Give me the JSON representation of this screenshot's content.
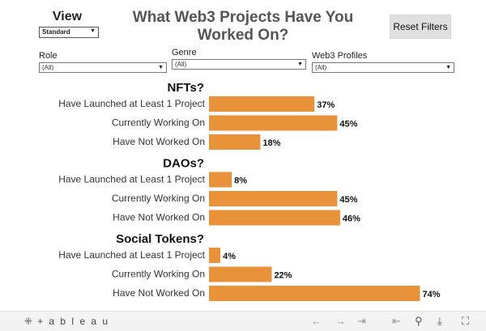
{
  "view": {
    "label": "View",
    "selected": "Standard"
  },
  "title": "What Web3 Projects Have You Worked On?",
  "reset_button": "Reset Filters",
  "filters": [
    {
      "label": "Role",
      "value": "(All)"
    },
    {
      "label": "Genre",
      "value": "(All)"
    },
    {
      "label": "Web3 Profiles",
      "value": "(All)"
    }
  ],
  "chart_data": {
    "type": "bar",
    "orientation": "horizontal",
    "bar_color": "#E8923A",
    "xlim": [
      0,
      100
    ],
    "groups": [
      {
        "title": "NFTs?",
        "categories": [
          "Have Launched at Least 1 Project",
          "Currently Working On",
          "Have Not Worked On"
        ],
        "values": [
          37,
          45,
          18
        ],
        "labels": [
          "37%",
          "45%",
          "18%"
        ]
      },
      {
        "title": "DAOs?",
        "categories": [
          "Have Launched at Least 1 Project",
          "Currently Working On",
          "Have Not Worked On"
        ],
        "values": [
          8,
          45,
          46
        ],
        "labels": [
          "8%",
          "45%",
          "46%"
        ]
      },
      {
        "title": "Social Tokens?",
        "categories": [
          "Have Launched at Least 1 Project",
          "Currently Working On",
          "Have Not Worked On"
        ],
        "values": [
          4,
          22,
          74
        ],
        "labels": [
          "4%",
          "22%",
          "74%"
        ]
      }
    ]
  },
  "toolbar": {
    "logo_text": "+ a b l e a u",
    "icons": [
      "tableau-logo-icon",
      "undo-icon",
      "redo-icon",
      "revert-icon",
      "back-to-start-icon",
      "share-icon",
      "download-icon",
      "fullscreen-icon"
    ]
  }
}
